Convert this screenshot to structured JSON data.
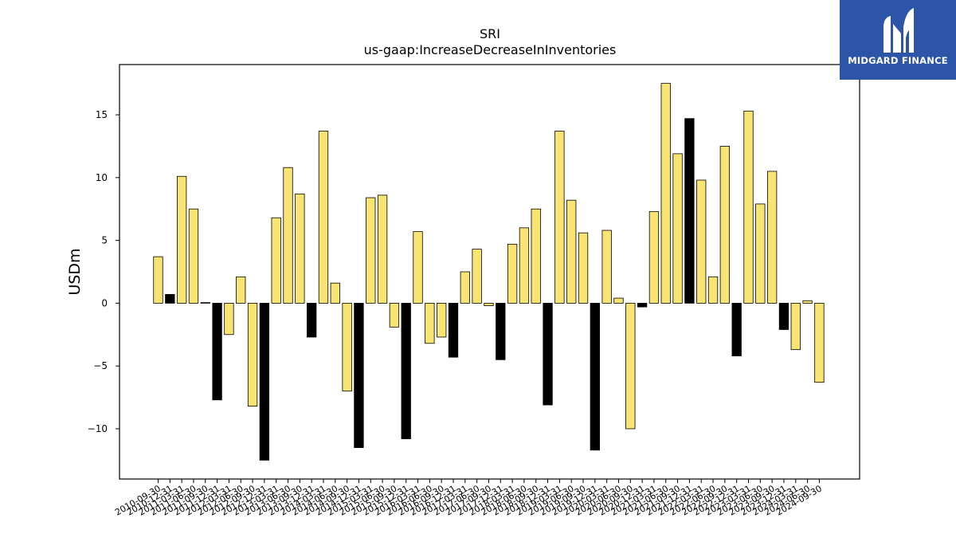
{
  "logo": {
    "text": "MIDGARD FINANCE",
    "background": "#2c55a8"
  },
  "chart_data": {
    "type": "bar",
    "title": "SRI",
    "subtitle": "us-gaap:IncreaseDecreaseInInventories",
    "xlabel": "",
    "ylabel": "USDm",
    "ylim": [
      -14,
      19
    ],
    "yticks": [
      -10,
      -5,
      0,
      5,
      10,
      15
    ],
    "grid": false,
    "colors": {
      "default": "#f8e472",
      "highlight": "#000000"
    },
    "categories": [
      "2010-09-30",
      "2010-12-31",
      "2011-03-31",
      "2011-06-30",
      "2011-09-30",
      "2011-12-31",
      "2012-03-31",
      "2012-06-30",
      "2012-09-30",
      "2012-12-31",
      "2013-03-31",
      "2013-06-30",
      "2013-09-30",
      "2013-12-31",
      "2014-03-31",
      "2014-06-30",
      "2014-09-30",
      "2014-12-31",
      "2015-03-31",
      "2015-06-30",
      "2015-09-30",
      "2015-12-31",
      "2016-03-31",
      "2016-06-30",
      "2016-09-30",
      "2016-12-31",
      "2017-03-31",
      "2017-06-30",
      "2017-09-30",
      "2017-12-31",
      "2018-03-31",
      "2018-06-30",
      "2018-09-30",
      "2018-12-31",
      "2019-03-31",
      "2019-06-30",
      "2019-09-30",
      "2019-12-31",
      "2020-03-31",
      "2020-06-30",
      "2020-09-30",
      "2020-12-31",
      "2021-03-31",
      "2021-06-30",
      "2021-09-30",
      "2021-12-31",
      "2022-03-31",
      "2022-06-30",
      "2022-09-30",
      "2022-12-31",
      "2023-03-31",
      "2023-06-30",
      "2023-09-30",
      "2023-12-31",
      "2024-03-31",
      "2024-06-30",
      "2024-09-30"
    ],
    "values": [
      3.7,
      0.7,
      10.1,
      7.5,
      0.05,
      -7.7,
      -2.5,
      2.1,
      -8.2,
      -12.5,
      6.8,
      10.8,
      8.7,
      -2.7,
      13.7,
      1.6,
      -7.0,
      -11.5,
      8.4,
      8.6,
      -1.9,
      -10.8,
      5.7,
      -3.2,
      -2.7,
      -4.3,
      2.5,
      4.3,
      -0.2,
      -4.5,
      4.7,
      6.0,
      7.5,
      -8.1,
      13.7,
      8.2,
      5.6,
      -11.7,
      5.8,
      0.4,
      -10.0,
      -0.3,
      7.3,
      17.5,
      11.9,
      14.7,
      9.8,
      2.1,
      12.5,
      -4.2,
      15.3,
      7.9,
      10.5,
      -2.1,
      -3.7,
      0.2,
      -6.3
    ],
    "highlight": [
      false,
      true,
      false,
      false,
      true,
      true,
      false,
      false,
      false,
      true,
      false,
      false,
      false,
      true,
      false,
      false,
      false,
      true,
      false,
      false,
      false,
      true,
      false,
      false,
      false,
      true,
      false,
      false,
      false,
      true,
      false,
      false,
      false,
      true,
      false,
      false,
      false,
      true,
      false,
      false,
      false,
      true,
      false,
      false,
      false,
      true,
      false,
      false,
      false,
      true,
      false,
      false,
      false,
      true,
      false,
      false,
      false
    ]
  }
}
